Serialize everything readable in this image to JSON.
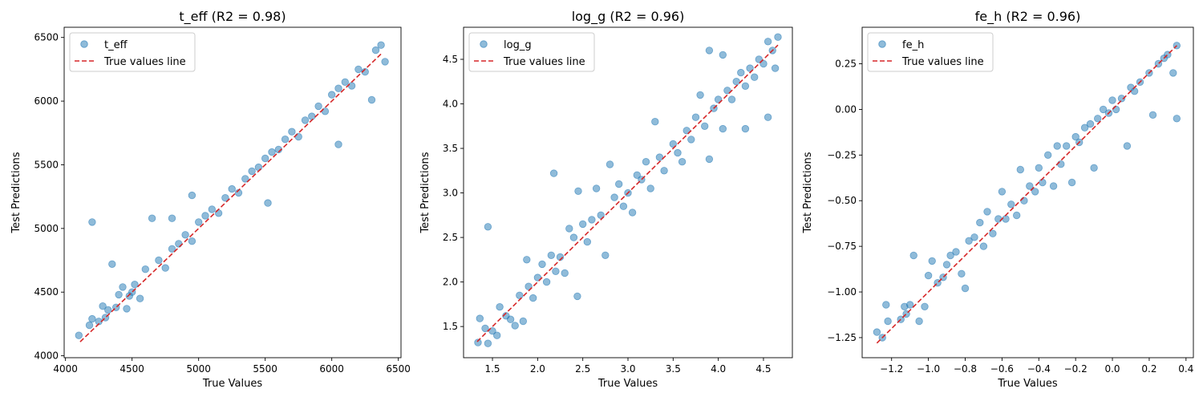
{
  "chart_data": [
    {
      "type": "scatter",
      "title": "t_eff (R2 = 0.98)",
      "xlabel": "True Values",
      "ylabel": "Test Predictions",
      "xlim": [
        3990,
        6520
      ],
      "ylim": [
        3985,
        6580
      ],
      "xticks": [
        4000,
        4500,
        5000,
        5500,
        6000,
        6500
      ],
      "xtick_labels": [
        "4000",
        "4500",
        "5000",
        "5500",
        "6000",
        "6500"
      ],
      "yticks": [
        4000,
        4500,
        5000,
        5500,
        6000,
        6500
      ],
      "ytick_labels": [
        "4000",
        "4500",
        "5000",
        "5500",
        "6000",
        "6500"
      ],
      "legend": [
        "t_eff",
        "True values line"
      ],
      "legend_position": "top-left",
      "line": {
        "name": "True values line",
        "x": [
          4110,
          6370
        ],
        "y": [
          4110,
          6370
        ]
      },
      "series": [
        {
          "name": "t_eff",
          "points": [
            [
              4100,
              4160
            ],
            [
              4180,
              4240
            ],
            [
              4200,
              4290
            ],
            [
              4200,
              5050
            ],
            [
              4250,
              4270
            ],
            [
              4280,
              4390
            ],
            [
              4300,
              4300
            ],
            [
              4320,
              4360
            ],
            [
              4350,
              4720
            ],
            [
              4380,
              4380
            ],
            [
              4400,
              4480
            ],
            [
              4430,
              4540
            ],
            [
              4460,
              4370
            ],
            [
              4480,
              4470
            ],
            [
              4500,
              4500
            ],
            [
              4520,
              4560
            ],
            [
              4560,
              4450
            ],
            [
              4600,
              4680
            ],
            [
              4650,
              5080
            ],
            [
              4700,
              4750
            ],
            [
              4750,
              4690
            ],
            [
              4800,
              5080
            ],
            [
              4800,
              4840
            ],
            [
              4850,
              4880
            ],
            [
              4900,
              4950
            ],
            [
              4950,
              4900
            ],
            [
              4950,
              5260
            ],
            [
              5000,
              5050
            ],
            [
              5050,
              5100
            ],
            [
              5100,
              5150
            ],
            [
              5150,
              5120
            ],
            [
              5200,
              5240
            ],
            [
              5250,
              5310
            ],
            [
              5300,
              5280
            ],
            [
              5350,
              5390
            ],
            [
              5400,
              5450
            ],
            [
              5450,
              5480
            ],
            [
              5500,
              5550
            ],
            [
              5520,
              5200
            ],
            [
              5550,
              5600
            ],
            [
              5600,
              5620
            ],
            [
              5650,
              5700
            ],
            [
              5700,
              5760
            ],
            [
              5750,
              5720
            ],
            [
              5800,
              5850
            ],
            [
              5850,
              5880
            ],
            [
              5900,
              5960
            ],
            [
              5950,
              5920
            ],
            [
              6000,
              6050
            ],
            [
              6050,
              5660
            ],
            [
              6050,
              6100
            ],
            [
              6100,
              6150
            ],
            [
              6150,
              6120
            ],
            [
              6200,
              6250
            ],
            [
              6250,
              6230
            ],
            [
              6300,
              6010
            ],
            [
              6330,
              6400
            ],
            [
              6370,
              6440
            ],
            [
              6400,
              6310
            ]
          ]
        }
      ]
    },
    {
      "type": "scatter",
      "title": "log_g (R2 = 0.96)",
      "xlabel": "True Values",
      "ylabel": "Test Predictions",
      "xlim": [
        1.18,
        4.82
      ],
      "ylim": [
        1.15,
        4.86
      ],
      "xticks": [
        1.5,
        2.0,
        2.5,
        3.0,
        3.5,
        4.0,
        4.5
      ],
      "xtick_labels": [
        "1.5",
        "2.0",
        "2.5",
        "3.0",
        "3.5",
        "4.0",
        "4.5"
      ],
      "yticks": [
        1.5,
        2.0,
        2.5,
        3.0,
        3.5,
        4.0,
        4.5
      ],
      "ytick_labels": [
        "1.5",
        "2.0",
        "2.5",
        "3.0",
        "3.5",
        "4.0",
        "4.5"
      ],
      "legend": [
        "log_g",
        "True values line"
      ],
      "legend_position": "top-left",
      "line": {
        "name": "True values line",
        "x": [
          1.33,
          4.66
        ],
        "y": [
          1.33,
          4.66
        ]
      },
      "series": [
        {
          "name": "log_g",
          "points": [
            [
              1.34,
              1.32
            ],
            [
              1.36,
              1.59
            ],
            [
              1.42,
              1.48
            ],
            [
              1.45,
              2.62
            ],
            [
              1.45,
              1.31
            ],
            [
              1.5,
              1.45
            ],
            [
              1.55,
              1.4
            ],
            [
              1.58,
              1.72
            ],
            [
              1.65,
              1.62
            ],
            [
              1.7,
              1.58
            ],
            [
              1.75,
              1.51
            ],
            [
              1.8,
              1.85
            ],
            [
              1.84,
              1.56
            ],
            [
              1.88,
              2.25
            ],
            [
              1.9,
              1.95
            ],
            [
              1.95,
              1.82
            ],
            [
              2.0,
              2.05
            ],
            [
              2.05,
              2.2
            ],
            [
              2.1,
              2.0
            ],
            [
              2.15,
              2.3
            ],
            [
              2.18,
              3.22
            ],
            [
              2.2,
              2.12
            ],
            [
              2.25,
              2.28
            ],
            [
              2.3,
              2.1
            ],
            [
              2.35,
              2.6
            ],
            [
              2.4,
              2.5
            ],
            [
              2.44,
              1.84
            ],
            [
              2.45,
              3.02
            ],
            [
              2.5,
              2.65
            ],
            [
              2.55,
              2.45
            ],
            [
              2.6,
              2.7
            ],
            [
              2.65,
              3.05
            ],
            [
              2.7,
              2.75
            ],
            [
              2.75,
              2.3
            ],
            [
              2.8,
              3.32
            ],
            [
              2.85,
              2.95
            ],
            [
              2.9,
              3.1
            ],
            [
              2.95,
              2.85
            ],
            [
              3.0,
              3.0
            ],
            [
              3.05,
              2.78
            ],
            [
              3.1,
              3.2
            ],
            [
              3.15,
              3.15
            ],
            [
              3.2,
              3.35
            ],
            [
              3.25,
              3.05
            ],
            [
              3.3,
              3.8
            ],
            [
              3.35,
              3.4
            ],
            [
              3.4,
              3.25
            ],
            [
              3.5,
              3.55
            ],
            [
              3.55,
              3.45
            ],
            [
              3.6,
              3.35
            ],
            [
              3.65,
              3.7
            ],
            [
              3.7,
              3.6
            ],
            [
              3.75,
              3.85
            ],
            [
              3.8,
              4.1
            ],
            [
              3.85,
              3.75
            ],
            [
              3.9,
              4.6
            ],
            [
              3.9,
              3.38
            ],
            [
              3.95,
              3.95
            ],
            [
              4.0,
              4.05
            ],
            [
              4.05,
              3.72
            ],
            [
              4.05,
              4.55
            ],
            [
              4.1,
              4.15
            ],
            [
              4.15,
              4.05
            ],
            [
              4.2,
              4.25
            ],
            [
              4.25,
              4.35
            ],
            [
              4.3,
              4.2
            ],
            [
              4.3,
              3.72
            ],
            [
              4.35,
              4.4
            ],
            [
              4.4,
              4.3
            ],
            [
              4.45,
              4.5
            ],
            [
              4.5,
              4.45
            ],
            [
              4.55,
              4.7
            ],
            [
              4.55,
              3.85
            ],
            [
              4.6,
              4.6
            ],
            [
              4.63,
              4.4
            ],
            [
              4.66,
              4.75
            ]
          ]
        }
      ]
    },
    {
      "type": "scatter",
      "title": "fe_h (R2 = 0.96)",
      "xlabel": "True Values",
      "ylabel": "Test Predictions",
      "xlim": [
        -1.36,
        0.44
      ],
      "ylim": [
        -1.36,
        0.45
      ],
      "xticks": [
        -1.2,
        -1.0,
        -0.8,
        -0.6,
        -0.4,
        -0.2,
        0.0,
        0.2,
        0.4
      ],
      "xtick_labels": [
        "−1.2",
        "−1.0",
        "−0.8",
        "−0.6",
        "−0.4",
        "−0.2",
        "0.0",
        "0.2",
        "0.4"
      ],
      "yticks": [
        -1.25,
        -1.0,
        -0.75,
        -0.5,
        -0.25,
        0.0,
        0.25
      ],
      "ytick_labels": [
        "−1.25",
        "−1.00",
        "−0.75",
        "−0.50",
        "−0.25",
        "0.00",
        "0.25"
      ],
      "legend": [
        "fe_h",
        "True values line"
      ],
      "legend_position": "top-left",
      "line": {
        "name": "True values line",
        "x": [
          -1.28,
          0.35
        ],
        "y": [
          -1.28,
          0.35
        ]
      },
      "series": [
        {
          "name": "fe_h",
          "points": [
            [
              -1.28,
              -1.22
            ],
            [
              -1.25,
              -1.25
            ],
            [
              -1.23,
              -1.07
            ],
            [
              -1.22,
              -1.16
            ],
            [
              -1.15,
              -1.15
            ],
            [
              -1.13,
              -1.08
            ],
            [
              -1.12,
              -1.12
            ],
            [
              -1.1,
              -1.07
            ],
            [
              -1.08,
              -0.8
            ],
            [
              -1.05,
              -1.16
            ],
            [
              -1.02,
              -1.08
            ],
            [
              -1.0,
              -0.91
            ],
            [
              -0.98,
              -0.83
            ],
            [
              -0.95,
              -0.95
            ],
            [
              -0.92,
              -0.92
            ],
            [
              -0.9,
              -0.85
            ],
            [
              -0.88,
              -0.8
            ],
            [
              -0.85,
              -0.78
            ],
            [
              -0.82,
              -0.9
            ],
            [
              -0.8,
              -0.98
            ],
            [
              -0.78,
              -0.72
            ],
            [
              -0.75,
              -0.7
            ],
            [
              -0.72,
              -0.62
            ],
            [
              -0.7,
              -0.75
            ],
            [
              -0.68,
              -0.56
            ],
            [
              -0.65,
              -0.68
            ],
            [
              -0.62,
              -0.6
            ],
            [
              -0.6,
              -0.45
            ],
            [
              -0.58,
              -0.6
            ],
            [
              -0.55,
              -0.52
            ],
            [
              -0.52,
              -0.58
            ],
            [
              -0.5,
              -0.33
            ],
            [
              -0.48,
              -0.5
            ],
            [
              -0.45,
              -0.42
            ],
            [
              -0.42,
              -0.45
            ],
            [
              -0.4,
              -0.32
            ],
            [
              -0.38,
              -0.4
            ],
            [
              -0.35,
              -0.25
            ],
            [
              -0.32,
              -0.42
            ],
            [
              -0.3,
              -0.2
            ],
            [
              -0.28,
              -0.3
            ],
            [
              -0.25,
              -0.2
            ],
            [
              -0.22,
              -0.4
            ],
            [
              -0.2,
              -0.15
            ],
            [
              -0.18,
              -0.18
            ],
            [
              -0.15,
              -0.1
            ],
            [
              -0.12,
              -0.08
            ],
            [
              -0.1,
              -0.32
            ],
            [
              -0.08,
              -0.05
            ],
            [
              -0.05,
              0.0
            ],
            [
              -0.02,
              -0.02
            ],
            [
              0.0,
              0.05
            ],
            [
              0.02,
              0.0
            ],
            [
              0.05,
              0.06
            ],
            [
              0.08,
              -0.2
            ],
            [
              0.1,
              0.12
            ],
            [
              0.12,
              0.1
            ],
            [
              0.15,
              0.15
            ],
            [
              0.2,
              0.2
            ],
            [
              0.22,
              -0.03
            ],
            [
              0.25,
              0.25
            ],
            [
              0.28,
              0.28
            ],
            [
              0.3,
              0.3
            ],
            [
              0.33,
              0.2
            ],
            [
              0.35,
              0.35
            ],
            [
              0.35,
              -0.05
            ]
          ]
        }
      ]
    }
  ]
}
